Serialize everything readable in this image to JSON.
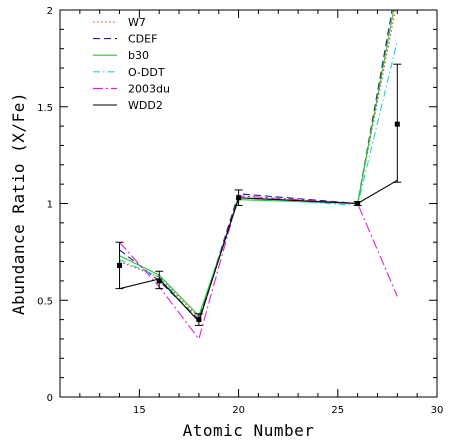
{
  "chart_data": {
    "type": "line",
    "title": "",
    "xlabel": "Atomic Number",
    "ylabel": "Abundance Ratio (X/Fe)",
    "xlim": [
      11,
      30
    ],
    "ylim": [
      0,
      2
    ],
    "x_ticks": [
      15,
      20,
      25,
      30
    ],
    "y_ticks": [
      0,
      0.5,
      1,
      1.5,
      2
    ],
    "x_tick_labels": [
      "15",
      "20",
      "25",
      "30"
    ],
    "y_tick_labels": [
      "0",
      "0.5",
      "1",
      "1.5",
      "2"
    ],
    "grid": false,
    "legend_position": "top-left",
    "series": [
      {
        "name": "W7",
        "color": "#e8322a",
        "dash": "1.5,2.5",
        "x": [
          14,
          16,
          18,
          20,
          26,
          28
        ],
        "y": [
          0.7,
          0.62,
          0.41,
          1.03,
          1.0,
          2.05
        ]
      },
      {
        "name": "CDEF",
        "color": "#1c1c9a",
        "dash": "7,4",
        "x": [
          14,
          16,
          18,
          20,
          26,
          28
        ],
        "y": [
          0.76,
          0.6,
          0.4,
          1.05,
          1.0,
          2.15
        ]
      },
      {
        "name": "b30",
        "color": "#22cc22",
        "dash": "",
        "x": [
          14,
          16,
          18,
          20,
          26,
          28
        ],
        "y": [
          0.73,
          0.63,
          0.42,
          1.02,
          1.0,
          2.1
        ]
      },
      {
        "name": "O-DDT",
        "color": "#1ecfe0",
        "dash": "7,3,1.5,3",
        "x": [
          14,
          16,
          18,
          20,
          26,
          28
        ],
        "y": [
          0.71,
          0.62,
          0.39,
          1.03,
          0.99,
          1.84
        ]
      },
      {
        "name": "2003du",
        "color": "#e020d8",
        "dash": "10,3,2,3",
        "x": [
          14,
          16,
          18,
          20,
          26,
          28
        ],
        "y": [
          0.8,
          0.57,
          0.3,
          1.04,
          1.0,
          0.52
        ]
      },
      {
        "name": "WDD2",
        "color": "#000000",
        "dash": "",
        "x": [
          14,
          16,
          18,
          20,
          26,
          28
        ],
        "y": [
          0.56,
          0.61,
          0.39,
          1.03,
          1.0,
          1.12
        ]
      }
    ],
    "observations": {
      "x": [
        14,
        16,
        18,
        20,
        26,
        28
      ],
      "y": [
        0.68,
        0.6,
        0.4,
        1.03,
        1.0,
        1.41
      ],
      "err_low": [
        0.56,
        0.56,
        0.37,
        0.99,
        0.99,
        1.11
      ],
      "err_high": [
        0.8,
        0.65,
        0.43,
        1.07,
        1.01,
        1.72
      ]
    }
  }
}
